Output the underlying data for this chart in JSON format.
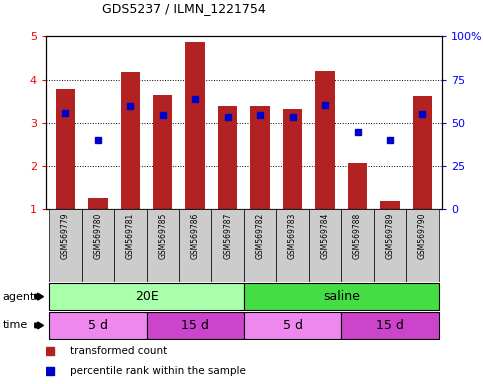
{
  "title": "GDS5237 / ILMN_1221754",
  "samples": [
    "GSM569779",
    "GSM569780",
    "GSM569781",
    "GSM569785",
    "GSM569786",
    "GSM569787",
    "GSM569782",
    "GSM569783",
    "GSM569784",
    "GSM569788",
    "GSM569789",
    "GSM569790"
  ],
  "bar_heights": [
    3.78,
    1.25,
    4.17,
    3.65,
    4.87,
    3.38,
    3.38,
    3.32,
    4.2,
    2.07,
    1.2,
    3.62
  ],
  "blue_y": [
    3.22,
    2.6,
    3.4,
    3.18,
    3.55,
    3.13,
    3.18,
    3.13,
    3.42,
    2.8,
    2.6,
    3.2
  ],
  "bar_color": "#B22222",
  "blue_color": "#0000CC",
  "ylim_left": [
    1,
    5
  ],
  "ylim_right": [
    0,
    100
  ],
  "yticks_left": [
    1,
    2,
    3,
    4,
    5
  ],
  "yticks_right": [
    0,
    25,
    50,
    75,
    100
  ],
  "ytick_labels_right": [
    "0",
    "25",
    "50",
    "75",
    "100%"
  ],
  "color_20E": "#AAFFAA",
  "color_saline": "#44DD44",
  "color_time_5d": "#EE88EE",
  "color_time_15d": "#CC44CC",
  "color_xtick_bg": "#CCCCCC",
  "background_color": "#ffffff"
}
